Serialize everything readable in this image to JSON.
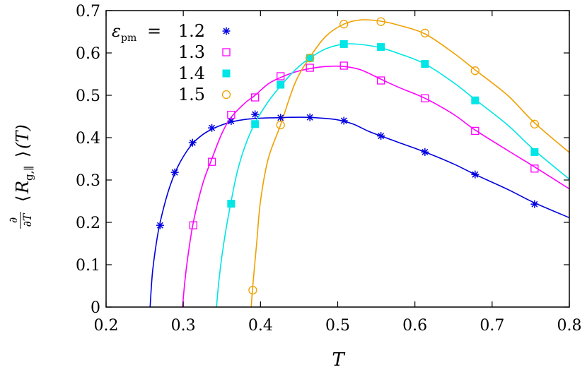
{
  "chart_data": {
    "type": "scatter",
    "title": "",
    "xlabel": "T",
    "ylabel_parts": {
      "frac_num": "∂",
      "frac_den": "∂T",
      "lang": "⟨",
      "R": "R",
      "sub": "g,∥",
      "rang": "⟩",
      "tail": "(T)"
    },
    "xlim": [
      0.2,
      0.8
    ],
    "ylim": [
      0,
      0.7
    ],
    "xticks": [
      0.2,
      0.3,
      0.4,
      0.5,
      0.6,
      0.7,
      0.8
    ],
    "xtick_labels": [
      "0.2",
      "0.3",
      "0.4",
      "0.5",
      "0.6",
      "0.7",
      "0.8"
    ],
    "yticks": [
      0,
      0.1,
      0.2,
      0.3,
      0.4,
      0.5,
      0.6,
      0.7
    ],
    "ytick_labels": [
      "0",
      "0.1",
      "0.2",
      "0.3",
      "0.4",
      "0.5",
      "0.6",
      "0.7"
    ],
    "legend": {
      "placement": "top-left",
      "title_symbol": "ε",
      "title_sub": "pm",
      "title_eq": "="
    },
    "series": [
      {
        "name": "1.2",
        "color": "#0000e0",
        "marker": "asterisk",
        "points": [
          [
            0.27,
            0.193
          ],
          [
            0.289,
            0.318
          ],
          [
            0.312,
            0.388
          ],
          [
            0.337,
            0.423
          ],
          [
            0.362,
            0.439
          ],
          [
            0.393,
            0.455
          ],
          [
            0.426,
            0.447
          ],
          [
            0.464,
            0.448
          ],
          [
            0.508,
            0.44
          ],
          [
            0.556,
            0.404
          ],
          [
            0.613,
            0.366
          ],
          [
            0.678,
            0.313
          ],
          [
            0.755,
            0.243
          ]
        ],
        "curve": [
          [
            0.257,
            0.0
          ],
          [
            0.26,
            0.08
          ],
          [
            0.265,
            0.15
          ],
          [
            0.27,
            0.2
          ],
          [
            0.28,
            0.27
          ],
          [
            0.29,
            0.32
          ],
          [
            0.3,
            0.355
          ],
          [
            0.312,
            0.386
          ],
          [
            0.325,
            0.407
          ],
          [
            0.337,
            0.42
          ],
          [
            0.35,
            0.43
          ],
          [
            0.362,
            0.437
          ],
          [
            0.38,
            0.443
          ],
          [
            0.4,
            0.446
          ],
          [
            0.42,
            0.447
          ],
          [
            0.44,
            0.448
          ],
          [
            0.46,
            0.448
          ],
          [
            0.48,
            0.446
          ],
          [
            0.5,
            0.442
          ],
          [
            0.52,
            0.432
          ],
          [
            0.54,
            0.415
          ],
          [
            0.556,
            0.404
          ],
          [
            0.58,
            0.388
          ],
          [
            0.613,
            0.366
          ],
          [
            0.65,
            0.338
          ],
          [
            0.678,
            0.313
          ],
          [
            0.72,
            0.278
          ],
          [
            0.755,
            0.246
          ],
          [
            0.8,
            0.211
          ]
        ]
      },
      {
        "name": "1.3",
        "color": "#ff00ff",
        "marker": "open-square",
        "points": [
          [
            0.313,
            0.193
          ],
          [
            0.337,
            0.343
          ],
          [
            0.362,
            0.454
          ],
          [
            0.393,
            0.495
          ],
          [
            0.426,
            0.545
          ],
          [
            0.464,
            0.565
          ],
          [
            0.508,
            0.57
          ],
          [
            0.556,
            0.535
          ],
          [
            0.613,
            0.493
          ],
          [
            0.678,
            0.416
          ],
          [
            0.755,
            0.327
          ]
        ],
        "curve": [
          [
            0.299,
            0.0
          ],
          [
            0.302,
            0.06
          ],
          [
            0.306,
            0.12
          ],
          [
            0.313,
            0.2
          ],
          [
            0.325,
            0.29
          ],
          [
            0.337,
            0.35
          ],
          [
            0.35,
            0.41
          ],
          [
            0.362,
            0.448
          ],
          [
            0.38,
            0.482
          ],
          [
            0.393,
            0.5
          ],
          [
            0.41,
            0.527
          ],
          [
            0.426,
            0.542
          ],
          [
            0.445,
            0.555
          ],
          [
            0.464,
            0.563
          ],
          [
            0.485,
            0.568
          ],
          [
            0.508,
            0.568
          ],
          [
            0.53,
            0.56
          ],
          [
            0.556,
            0.538
          ],
          [
            0.58,
            0.518
          ],
          [
            0.613,
            0.493
          ],
          [
            0.65,
            0.455
          ],
          [
            0.678,
            0.418
          ],
          [
            0.72,
            0.37
          ],
          [
            0.755,
            0.331
          ],
          [
            0.8,
            0.279
          ]
        ]
      },
      {
        "name": "1.4",
        "color": "#00e5e5",
        "marker": "filled-square",
        "points": [
          [
            0.362,
            0.244
          ],
          [
            0.393,
            0.432
          ],
          [
            0.426,
            0.525
          ],
          [
            0.464,
            0.588
          ],
          [
            0.508,
            0.621
          ],
          [
            0.556,
            0.614
          ],
          [
            0.613,
            0.574
          ],
          [
            0.678,
            0.488
          ],
          [
            0.755,
            0.366
          ]
        ],
        "curve": [
          [
            0.343,
            0.0
          ],
          [
            0.346,
            0.06
          ],
          [
            0.35,
            0.12
          ],
          [
            0.355,
            0.18
          ],
          [
            0.362,
            0.25
          ],
          [
            0.37,
            0.32
          ],
          [
            0.38,
            0.38
          ],
          [
            0.393,
            0.435
          ],
          [
            0.41,
            0.485
          ],
          [
            0.426,
            0.522
          ],
          [
            0.445,
            0.56
          ],
          [
            0.464,
            0.588
          ],
          [
            0.485,
            0.61
          ],
          [
            0.508,
            0.621
          ],
          [
            0.53,
            0.62
          ],
          [
            0.556,
            0.612
          ],
          [
            0.58,
            0.598
          ],
          [
            0.613,
            0.574
          ],
          [
            0.65,
            0.53
          ],
          [
            0.678,
            0.49
          ],
          [
            0.72,
            0.43
          ],
          [
            0.755,
            0.37
          ],
          [
            0.8,
            0.302
          ]
        ]
      },
      {
        "name": "1.5",
        "color": "#f0a000",
        "marker": "open-circle",
        "points": [
          [
            0.39,
            0.04
          ],
          [
            0.426,
            0.43
          ],
          [
            0.464,
            0.588
          ],
          [
            0.508,
            0.668
          ],
          [
            0.556,
            0.674
          ],
          [
            0.613,
            0.647
          ],
          [
            0.678,
            0.558
          ],
          [
            0.755,
            0.432
          ]
        ],
        "curve": [
          [
            0.388,
            0.0
          ],
          [
            0.39,
            0.05
          ],
          [
            0.395,
            0.15
          ],
          [
            0.4,
            0.25
          ],
          [
            0.41,
            0.35
          ],
          [
            0.426,
            0.43
          ],
          [
            0.445,
            0.53
          ],
          [
            0.464,
            0.59
          ],
          [
            0.485,
            0.64
          ],
          [
            0.508,
            0.668
          ],
          [
            0.53,
            0.678
          ],
          [
            0.556,
            0.675
          ],
          [
            0.58,
            0.665
          ],
          [
            0.613,
            0.645
          ],
          [
            0.65,
            0.6
          ],
          [
            0.678,
            0.56
          ],
          [
            0.72,
            0.5
          ],
          [
            0.755,
            0.435
          ],
          [
            0.8,
            0.365
          ]
        ]
      }
    ]
  }
}
